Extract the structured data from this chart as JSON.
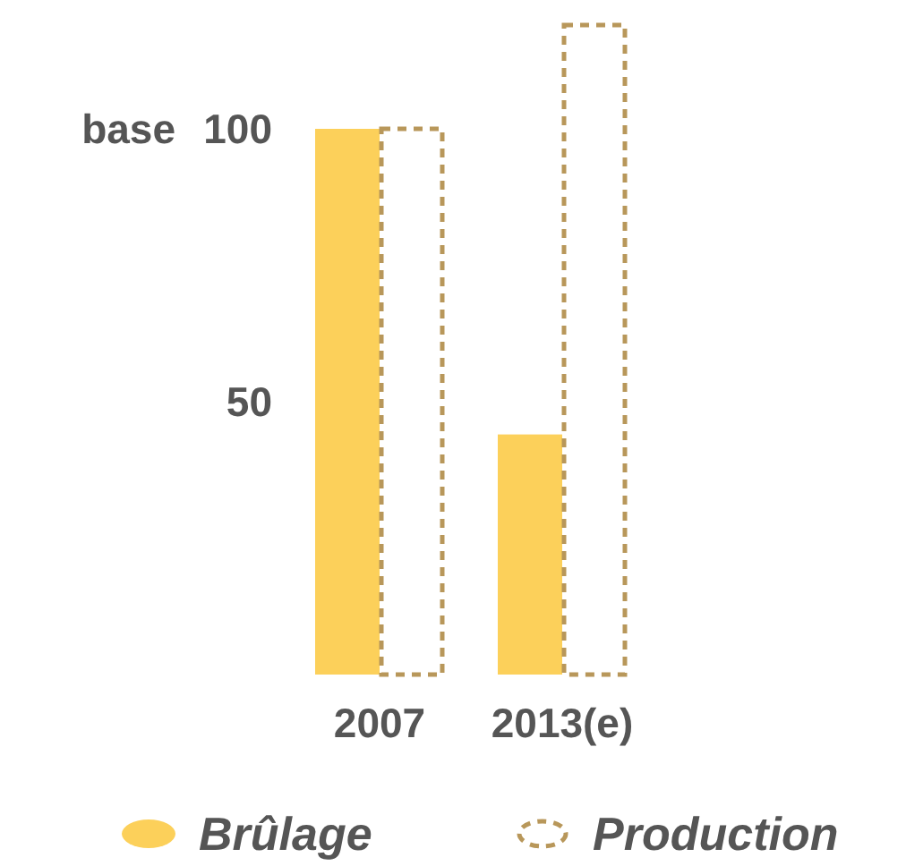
{
  "chart_data": {
    "type": "bar",
    "categories": [
      "2007",
      "2013(e)"
    ],
    "series": [
      {
        "name": "Brûlage",
        "color": "#fcd05a",
        "values": [
          100,
          44
        ]
      },
      {
        "name": "Production",
        "color": "#b8975a",
        "values": [
          100,
          119
        ],
        "line_style": "dashed"
      }
    ],
    "ylim": [
      0,
      120
    ],
    "yticks": [
      50,
      100
    ],
    "annotations": [
      "base"
    ],
    "legend": "bottom"
  }
}
